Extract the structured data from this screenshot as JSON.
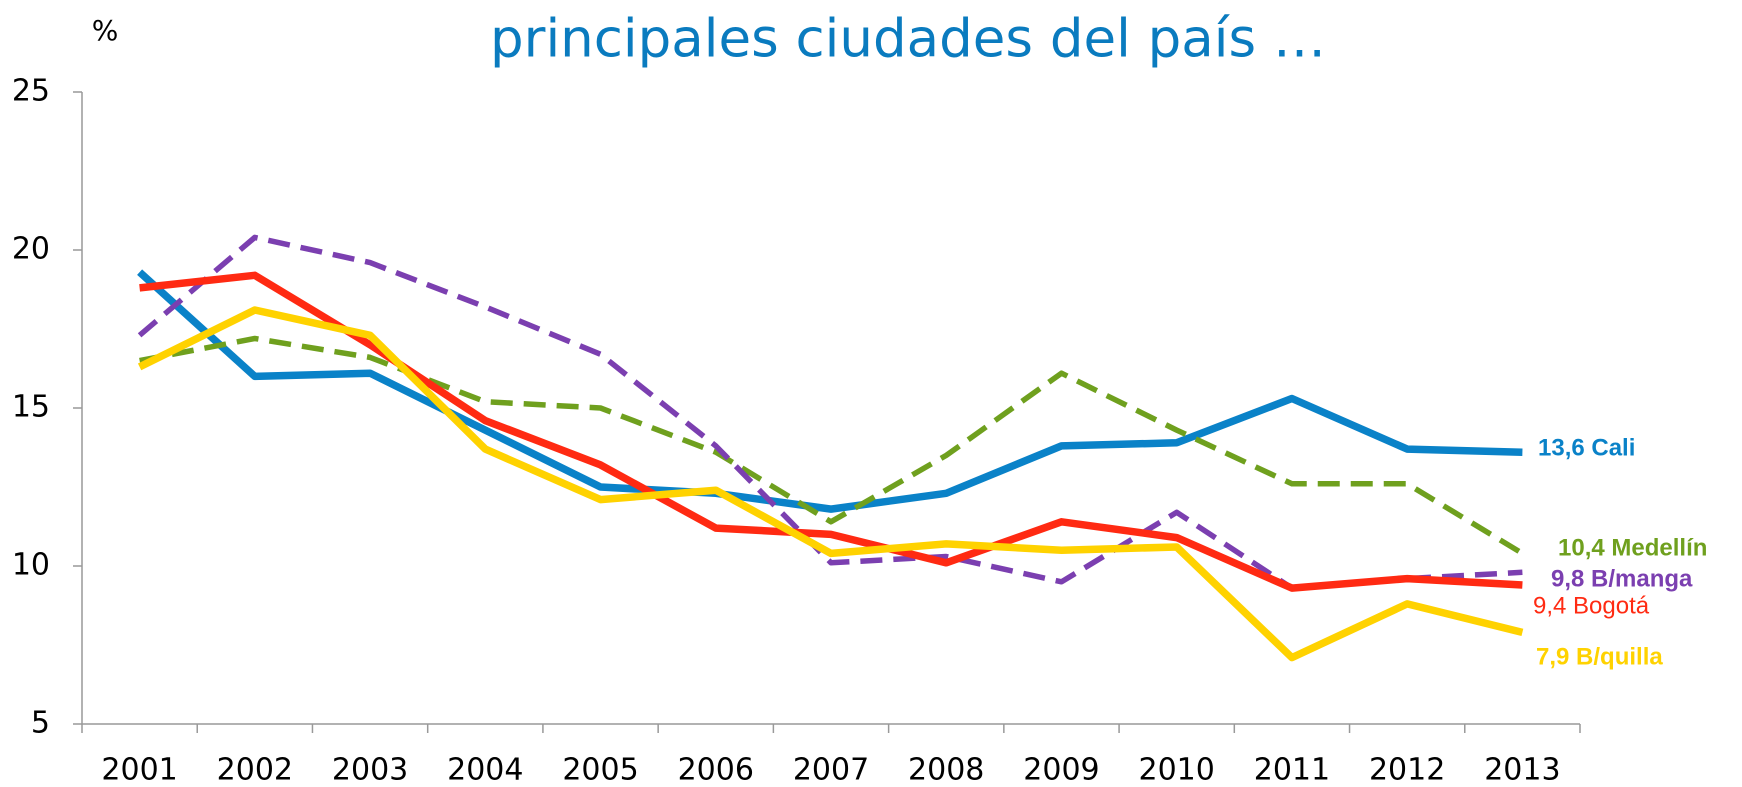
{
  "chart_data": {
    "type": "line",
    "title": "principales ciudades del país …",
    "y_label": "%",
    "categories": [
      "2001",
      "2002",
      "2003",
      "2004",
      "2005",
      "2006",
      "2007",
      "2008",
      "2009",
      "2010",
      "2011",
      "2012",
      "2013"
    ],
    "series": [
      {
        "name": "13,6 Cali",
        "color": "#0a82c8",
        "dashed": false,
        "values": [
          19.3,
          16.0,
          16.1,
          14.3,
          12.5,
          12.3,
          11.8,
          12.3,
          13.8,
          13.9,
          15.3,
          13.7,
          13.6
        ]
      },
      {
        "name": "10,4 Medellín",
        "color": "#6fa01e",
        "dashed": true,
        "values": [
          16.5,
          17.2,
          16.6,
          15.2,
          15.0,
          13.6,
          11.4,
          13.5,
          16.1,
          14.3,
          12.6,
          12.6,
          10.4
        ]
      },
      {
        "name": "9,8 B/manga",
        "color": "#7b3fb0",
        "dashed": true,
        "values": [
          17.3,
          20.4,
          19.6,
          18.2,
          16.7,
          13.8,
          10.1,
          10.3,
          9.5,
          11.7,
          9.3,
          9.6,
          9.8
        ]
      },
      {
        "name": "9,4 Bogotá",
        "color": "#ff2a12",
        "dashed": false,
        "values": [
          18.8,
          19.2,
          17.0,
          14.6,
          13.2,
          11.2,
          11.0,
          10.1,
          11.4,
          10.9,
          9.3,
          9.6,
          9.4
        ]
      },
      {
        "name": "7,9 B/quilla",
        "color": "#ffd200",
        "dashed": false,
        "values": [
          16.3,
          18.1,
          17.3,
          13.7,
          12.1,
          12.4,
          10.4,
          10.7,
          10.5,
          10.6,
          7.1,
          8.8,
          7.9
        ]
      }
    ],
    "ylim": [
      5,
      25
    ],
    "yticks": [
      5,
      10,
      15,
      20,
      25
    ],
    "grid": false
  }
}
